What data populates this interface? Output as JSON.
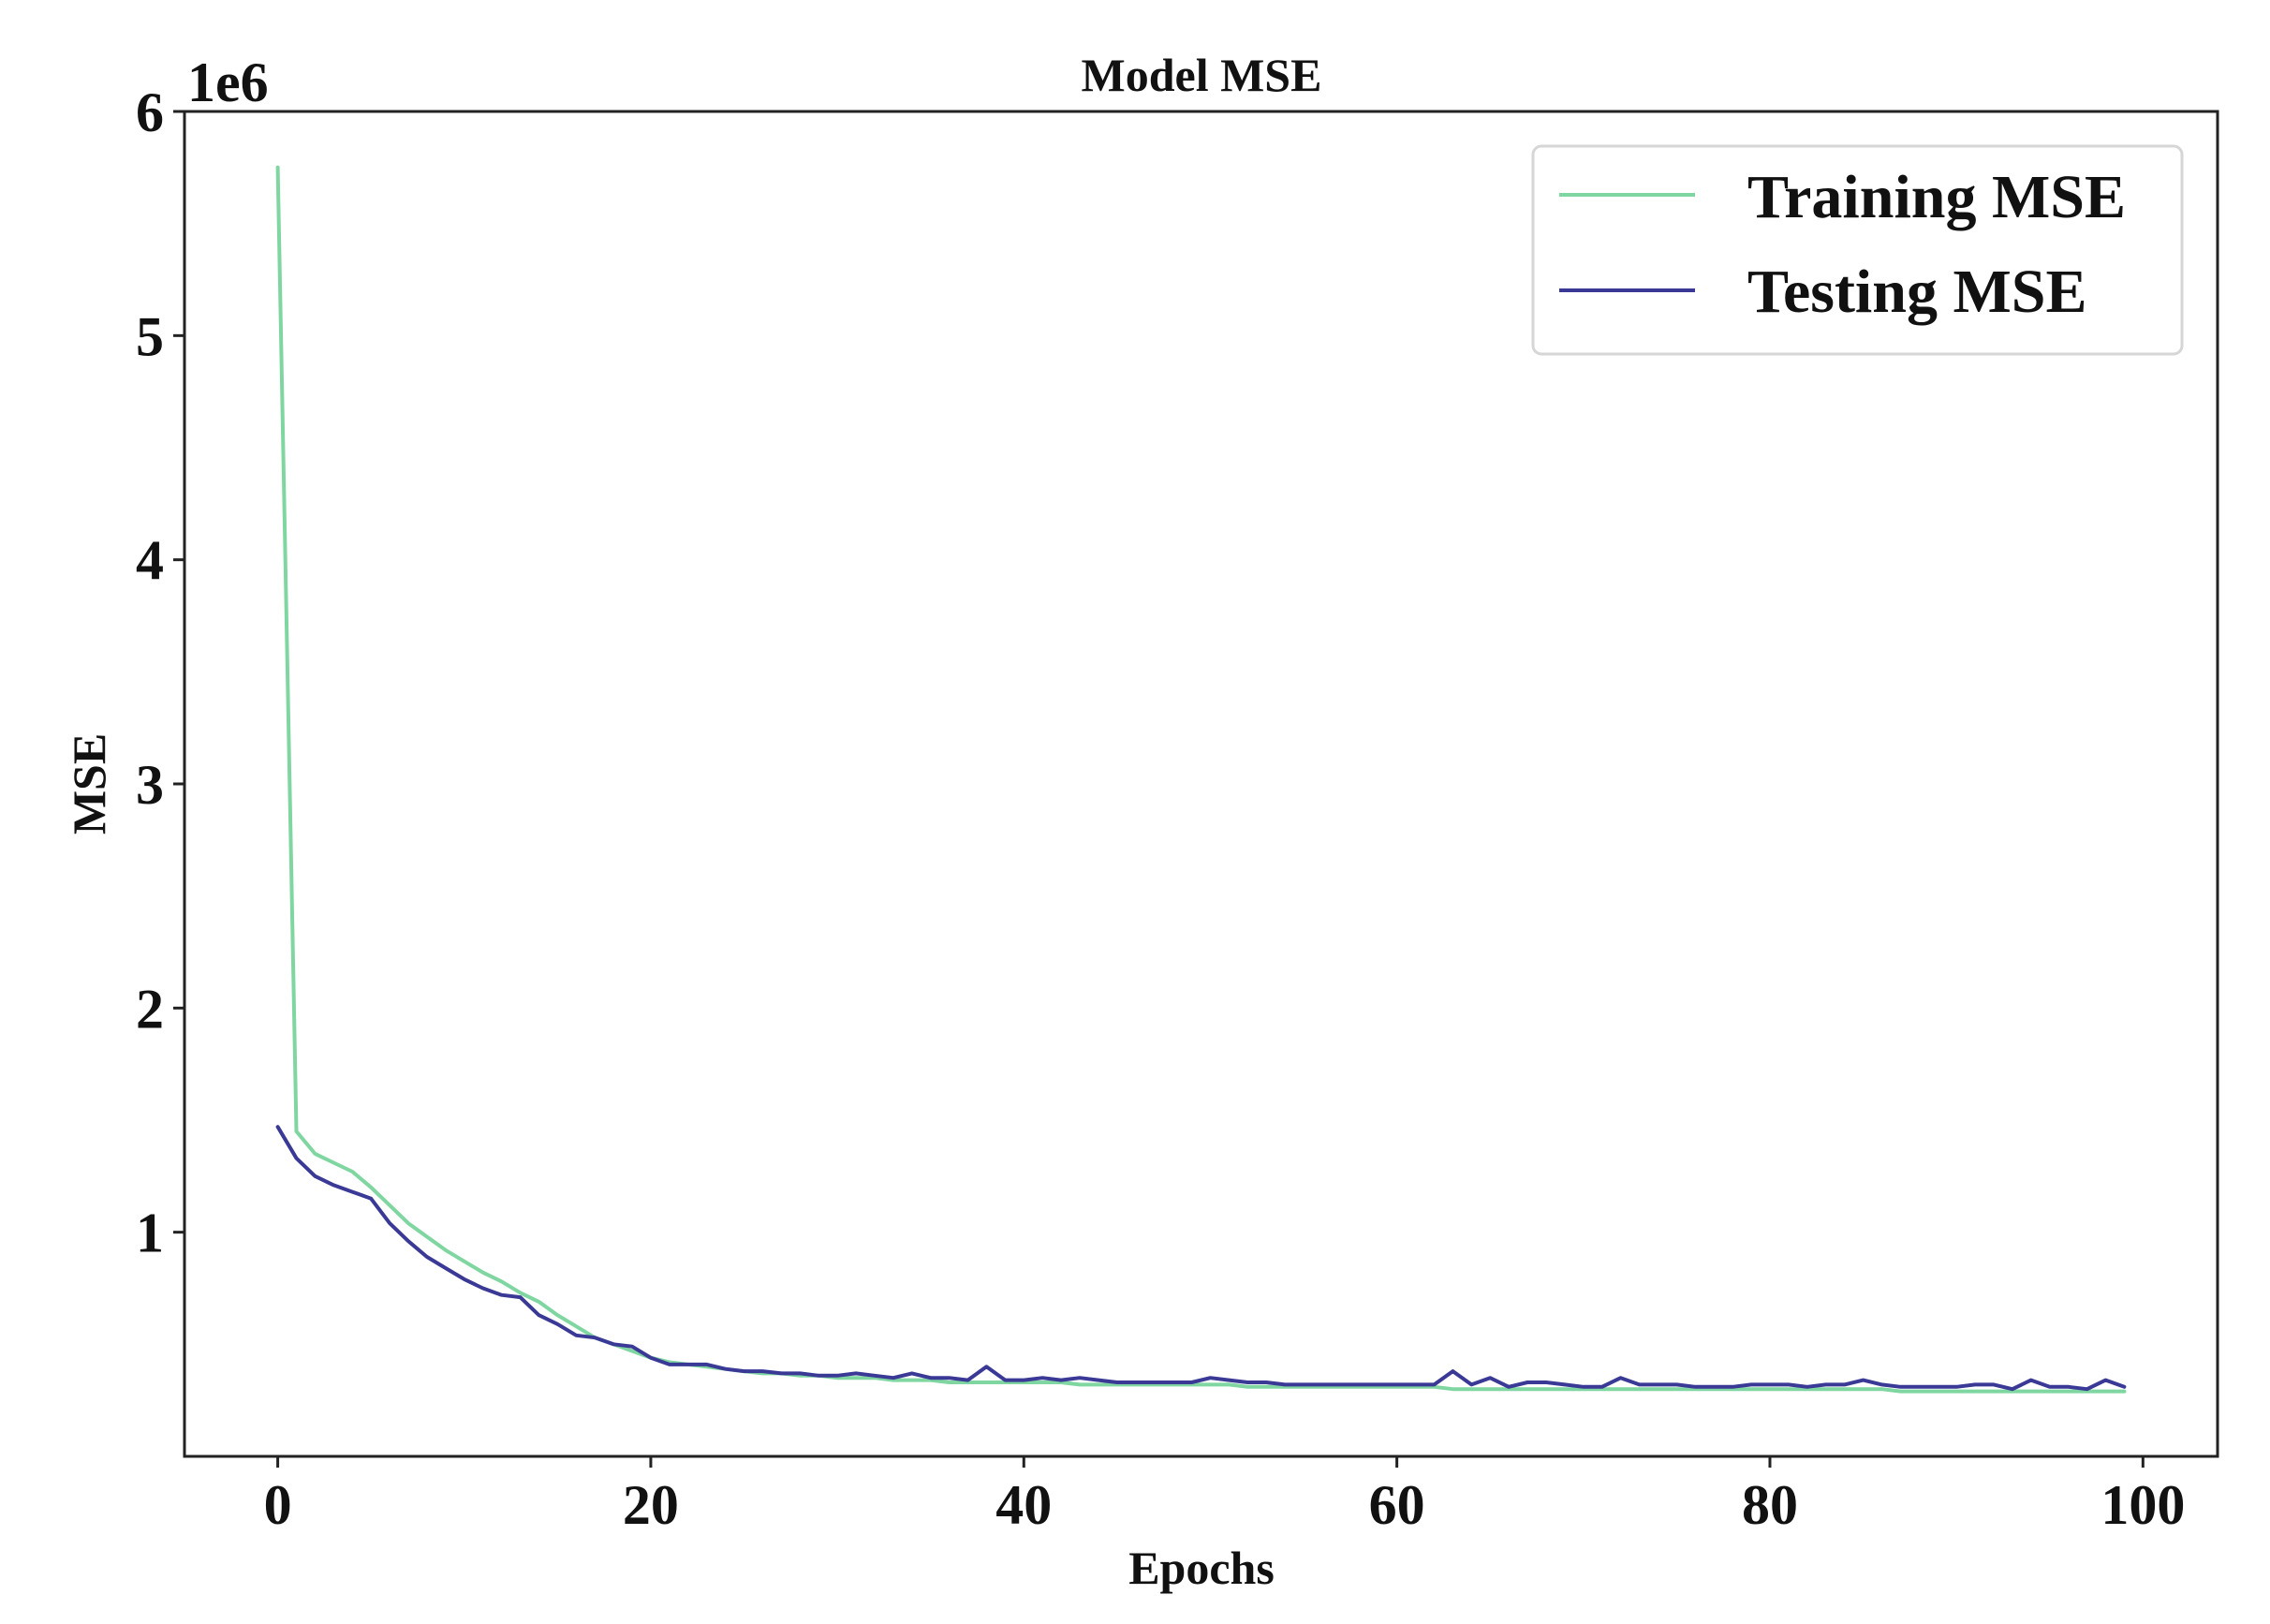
{
  "chart_data": {
    "type": "line",
    "title": "Model MSE",
    "xlabel": "Epochs",
    "ylabel": "MSE",
    "y_offset_label": "1e6",
    "xlim": [
      -5,
      104
    ],
    "ylim": [
      0,
      6
    ],
    "x_ticks": [
      0,
      20,
      40,
      60,
      80,
      100
    ],
    "y_ticks": [
      1,
      2,
      3,
      4,
      5,
      6
    ],
    "x_tick_labels": [
      "0",
      "20",
      "40",
      "60",
      "80",
      "100"
    ],
    "y_tick_labels": [
      "1",
      "2",
      "3",
      "4",
      "5",
      "6"
    ],
    "grid": false,
    "legend": {
      "position": "top-right",
      "entries": [
        "Training MSE",
        "Testing MSE"
      ]
    },
    "x": [
      0,
      1,
      2,
      3,
      4,
      5,
      6,
      7,
      8,
      9,
      10,
      11,
      12,
      13,
      14,
      15,
      16,
      17,
      18,
      19,
      20,
      21,
      22,
      23,
      24,
      25,
      26,
      27,
      28,
      29,
      30,
      31,
      32,
      33,
      34,
      35,
      36,
      37,
      38,
      39,
      40,
      41,
      42,
      43,
      44,
      45,
      46,
      47,
      48,
      49,
      50,
      51,
      52,
      53,
      54,
      55,
      56,
      57,
      58,
      59,
      60,
      61,
      62,
      63,
      64,
      65,
      66,
      67,
      68,
      69,
      70,
      71,
      72,
      73,
      74,
      75,
      76,
      77,
      78,
      79,
      80,
      81,
      82,
      83,
      84,
      85,
      86,
      87,
      88,
      89,
      90,
      91,
      92,
      93,
      94,
      95,
      96,
      97,
      98,
      99
    ],
    "series": [
      {
        "name": "Training MSE",
        "color": "#7fd6a0",
        "values": [
          5.75,
          1.45,
          1.35,
          1.31,
          1.27,
          1.2,
          1.12,
          1.04,
          0.98,
          0.92,
          0.87,
          0.82,
          0.78,
          0.73,
          0.69,
          0.63,
          0.58,
          0.53,
          0.5,
          0.47,
          0.44,
          0.42,
          0.41,
          0.4,
          0.39,
          0.38,
          0.37,
          0.37,
          0.36,
          0.36,
          0.35,
          0.35,
          0.35,
          0.34,
          0.34,
          0.34,
          0.33,
          0.33,
          0.33,
          0.33,
          0.33,
          0.33,
          0.33,
          0.32,
          0.32,
          0.32,
          0.32,
          0.32,
          0.32,
          0.32,
          0.32,
          0.32,
          0.31,
          0.31,
          0.31,
          0.31,
          0.31,
          0.31,
          0.31,
          0.31,
          0.31,
          0.31,
          0.31,
          0.3,
          0.3,
          0.3,
          0.3,
          0.3,
          0.3,
          0.3,
          0.3,
          0.3,
          0.3,
          0.3,
          0.3,
          0.3,
          0.3,
          0.3,
          0.3,
          0.3,
          0.3,
          0.3,
          0.3,
          0.3,
          0.3,
          0.3,
          0.3,
          0.29,
          0.29,
          0.29,
          0.29,
          0.29,
          0.29,
          0.29,
          0.29,
          0.29,
          0.29,
          0.29,
          0.29,
          0.29
        ]
      },
      {
        "name": "Testing MSE",
        "color": "#3a3a96",
        "values": [
          1.47,
          1.33,
          1.25,
          1.21,
          1.18,
          1.15,
          1.04,
          0.96,
          0.89,
          0.84,
          0.79,
          0.75,
          0.72,
          0.71,
          0.63,
          0.59,
          0.54,
          0.53,
          0.5,
          0.49,
          0.44,
          0.41,
          0.41,
          0.41,
          0.39,
          0.38,
          0.38,
          0.37,
          0.37,
          0.36,
          0.36,
          0.37,
          0.36,
          0.35,
          0.37,
          0.35,
          0.35,
          0.34,
          0.4,
          0.34,
          0.34,
          0.35,
          0.34,
          0.35,
          0.34,
          0.33,
          0.33,
          0.33,
          0.33,
          0.33,
          0.35,
          0.34,
          0.33,
          0.33,
          0.32,
          0.32,
          0.32,
          0.32,
          0.32,
          0.32,
          0.32,
          0.32,
          0.32,
          0.38,
          0.32,
          0.35,
          0.31,
          0.33,
          0.33,
          0.32,
          0.31,
          0.31,
          0.35,
          0.32,
          0.32,
          0.32,
          0.31,
          0.31,
          0.31,
          0.32,
          0.32,
          0.32,
          0.31,
          0.32,
          0.32,
          0.34,
          0.32,
          0.31,
          0.31,
          0.31,
          0.31,
          0.32,
          0.32,
          0.3,
          0.34,
          0.31,
          0.31,
          0.3,
          0.34,
          0.31
        ]
      }
    ]
  }
}
